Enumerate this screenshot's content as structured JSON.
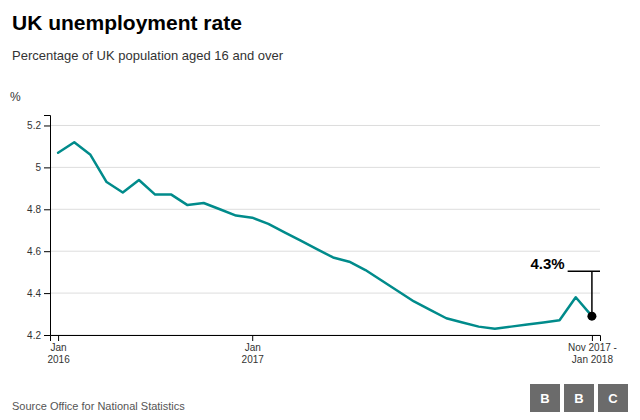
{
  "chart_data": {
    "type": "line",
    "title": "UK unemployment rate",
    "subtitle": "Percentage of UK population aged 16 and over",
    "source": "Source Office for National Statistics",
    "logo": [
      "B",
      "B",
      "C"
    ],
    "ylabel": "%",
    "annotation": "4.3%",
    "categories": [
      "Jan\n2016",
      null,
      null,
      null,
      null,
      null,
      null,
      null,
      null,
      null,
      null,
      null,
      "Jan\n2017",
      null,
      null,
      null,
      null,
      null,
      null,
      null,
      null,
      null,
      null,
      null,
      null,
      null,
      null,
      null,
      null,
      null,
      null,
      null,
      null,
      "Nov 2017 -\nJan 2018"
    ],
    "values": [
      5.07,
      5.12,
      5.06,
      4.93,
      4.88,
      4.94,
      4.87,
      4.87,
      4.82,
      4.83,
      4.8,
      4.77,
      4.76,
      4.73,
      4.69,
      4.65,
      4.61,
      4.57,
      4.55,
      4.51,
      4.46,
      4.41,
      4.36,
      4.32,
      4.28,
      4.26,
      4.24,
      4.23,
      4.24,
      4.25,
      4.26,
      4.27,
      4.38,
      4.29
    ],
    "color": "#008b8b",
    "ylim": [
      4.2,
      5.25
    ],
    "yticks": [
      5.2,
      5,
      4.8,
      4.6,
      4.4,
      4.2
    ],
    "grid": true
  }
}
